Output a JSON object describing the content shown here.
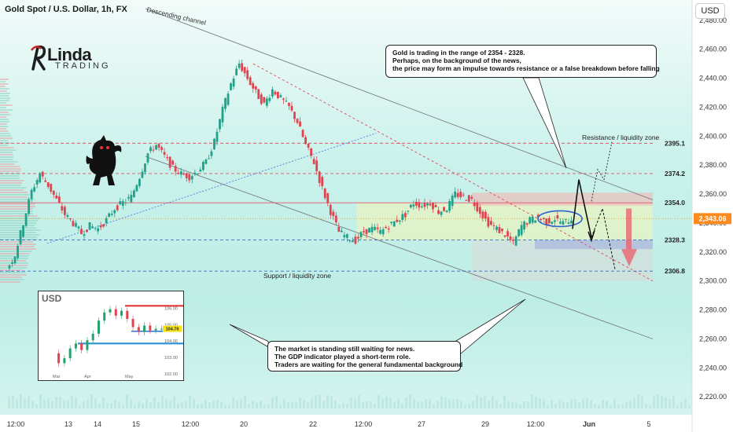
{
  "header": {
    "symbol_line": "Gold Spot / U.S. Dollar, 1h, FX",
    "currency_button": "USD"
  },
  "logo": {
    "big": "Linda",
    "small": "TRADING"
  },
  "chart_data": {
    "type": "line",
    "series": [
      {
        "values": [
          2308,
          2318,
          2340,
          2362,
          2374,
          2366,
          2356,
          2346,
          2340,
          2333,
          2338,
          2336,
          2342,
          2350,
          2354,
          2358,
          2372,
          2388,
          2394,
          2386,
          2378,
          2374,
          2372,
          2376,
          2382,
          2396,
          2418,
          2436,
          2450,
          2440,
          2430,
          2422,
          2432,
          2426,
          2420,
          2410,
          2394,
          2382,
          2364,
          2348,
          2334,
          2330,
          2328,
          2334,
          2336,
          2334,
          2338,
          2342,
          2346,
          2354,
          2352,
          2354,
          2348,
          2350,
          2360,
          2358,
          2356,
          2348,
          2340,
          2336,
          2332,
          2326,
          2338,
          2342,
          2344,
          2341,
          2343,
          2340,
          2343
        ]
      }
    ],
    "ylim": [
      2212,
      2494
    ],
    "y_ticks": [
      "2,480.00",
      "2,460.00",
      "2,440.00",
      "2,420.00",
      "2,400.00",
      "2,380.00",
      "2,360.00",
      "2,340.00",
      "2,320.00",
      "2,300.00",
      "2,280.00",
      "2,260.00",
      "2,240.00",
      "2,220.00"
    ],
    "x_ticks": [
      "12:00",
      "13",
      "14",
      "15",
      "12:00",
      "20",
      "22",
      "12:00",
      "27",
      "29",
      "12:00",
      "Jun",
      "5"
    ],
    "levels": [
      {
        "value": 2395.1,
        "label": "2395.1",
        "color": "#e05565"
      },
      {
        "value": 2374.2,
        "label": "2374.2",
        "color": "#e05565"
      },
      {
        "value": 2354.0,
        "label": "2354.0",
        "color": "#e05565"
      },
      {
        "value": 2328.3,
        "label": "2328.3",
        "color": "#3a66c4"
      },
      {
        "value": 2306.8,
        "label": "2306.8",
        "color": "#3a66c4"
      }
    ],
    "current_price": {
      "value": 2343.06,
      "label": "2,343.06"
    },
    "annotations": {
      "channel": "Descending channel",
      "resistance_zone": "Resistance / liquidity zone",
      "support_zone": "Support / liquidity zone"
    }
  },
  "notes": {
    "top": [
      "Gold is trading in the range of 2354 - 2328.",
      "Perhaps, on the background of the news,",
      "the price may form an impulse towards resistance or a false breakdown before falling"
    ],
    "bottom": [
      "The market is standing still waiting for news.",
      "The GDP indicator played a short-term role.",
      "Traders are waiting for the general fundamental background"
    ]
  },
  "inset": {
    "title": "USD",
    "price_label": "104.70",
    "y_ticks": [
      "106.00",
      "105.00",
      "104.00",
      "103.00",
      "102.00"
    ],
    "x_ticks": [
      "Mar",
      "Apr",
      "May"
    ],
    "values": [
      103.2,
      102.6,
      102.9,
      103.5,
      103.8,
      103.4,
      104.0,
      104.4,
      105.2,
      105.7,
      105.9,
      105.5,
      105.8,
      105.3,
      104.8,
      104.5,
      104.9,
      104.6,
      104.7,
      104.7
    ]
  }
}
